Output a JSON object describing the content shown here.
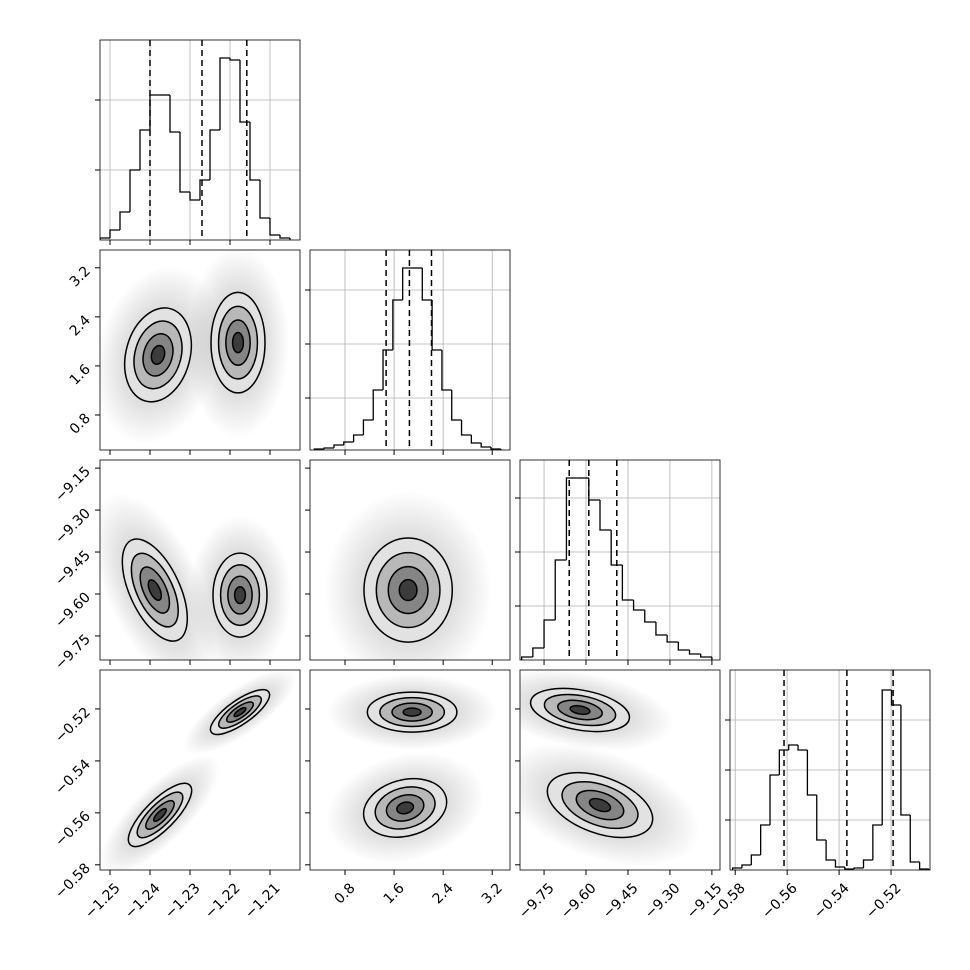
{
  "chart_data": {
    "type": "corner",
    "color": "#000000",
    "grid_color": "#b0b0b0",
    "halo_color": "#8c8c8c",
    "levels": [
      1,
      0.72,
      0.45,
      0.2
    ],
    "fills": [
      "#e2e2e2",
      "#b8b8b8",
      "#858585",
      "#3c3c3c"
    ],
    "params": [
      {
        "xlim": [
          -1.2525,
          -1.2025
        ],
        "ticks": [
          {
            "value": -1.25,
            "label": "−1.25"
          },
          {
            "value": -1.24,
            "label": "−1.24"
          },
          {
            "value": -1.23,
            "label": "−1.23"
          },
          {
            "value": -1.22,
            "label": "−1.22"
          },
          {
            "value": -1.21,
            "label": "−1.21"
          }
        ],
        "quantiles": [
          -1.24,
          -1.227,
          -1.2158
        ],
        "bins": [
          -1.2525,
          -1.25,
          -1.2475,
          -1.245,
          -1.2425,
          -1.24,
          -1.2375,
          -1.235,
          -1.2325,
          -1.23,
          -1.2275,
          -1.225,
          -1.2225,
          -1.22,
          -1.2175,
          -1.215,
          -1.2125,
          -1.21,
          -1.2075,
          -1.205
        ],
        "counts": [
          2,
          10,
          28,
          70,
          110,
          145,
          145,
          108,
          48,
          40,
          60,
          110,
          182,
          180,
          118,
          60,
          22,
          5,
          2
        ],
        "hist_ylim": [
          0,
          200
        ],
        "hist_yticks": [
          70,
          140
        ]
      },
      {
        "xlim": [
          0.229,
          3.49
        ],
        "ticks": [
          0.8,
          1.6,
          2.4,
          3.2
        ],
        "quantiles": [
          1.47,
          1.85,
          2.21
        ],
        "bins": [
          0.3,
          0.46,
          0.62,
          0.78,
          0.94,
          1.1,
          1.26,
          1.42,
          1.58,
          1.74,
          1.9,
          2.06,
          2.22,
          2.38,
          2.54,
          2.7,
          2.86,
          3.02,
          3.18,
          3.34
        ],
        "counts": [
          1,
          2,
          5,
          8,
          15,
          30,
          60,
          100,
          150,
          182,
          182,
          150,
          100,
          60,
          30,
          15,
          7,
          3,
          1
        ],
        "hist_ylim": [
          0,
          200
        ],
        "hist_yticks": [
          52,
          106,
          160
        ]
      },
      {
        "xlim": [
          -9.836,
          -9.121
        ],
        "ticks": [
          {
            "value": -9.75,
            "label": "−9.75"
          },
          {
            "value": -9.6,
            "label": "−9.60"
          },
          {
            "value": -9.45,
            "label": "−9.45"
          },
          {
            "value": -9.3,
            "label": "−9.30"
          },
          {
            "value": -9.15,
            "label": "−9.15"
          }
        ],
        "quantiles": [
          -9.66,
          -9.59,
          -9.49
        ],
        "bins": [
          -9.83,
          -9.79,
          -9.75,
          -9.71,
          -9.67,
          -9.63,
          -9.59,
          -9.55,
          -9.51,
          -9.47,
          -9.43,
          -9.39,
          -9.35,
          -9.31,
          -9.27,
          -9.23,
          -9.19,
          -9.15
        ],
        "counts": [
          3,
          12,
          40,
          100,
          182,
          182,
          160,
          130,
          95,
          60,
          50,
          38,
          25,
          18,
          10,
          6,
          3
        ],
        "hist_ylim": [
          0,
          200
        ],
        "hist_yticks": [
          54,
          108,
          162
        ]
      },
      {
        "xlim": [
          -0.582,
          -0.505
        ],
        "ticks": [
          {
            "value": -0.58,
            "label": "−0.58"
          },
          {
            "value": -0.56,
            "label": "−0.56"
          },
          {
            "value": -0.54,
            "label": "−0.54"
          },
          {
            "value": -0.52,
            "label": "−0.52"
          }
        ],
        "quantiles": [
          -0.5612,
          -0.537,
          -0.5192
        ],
        "bins": [
          -0.581,
          -0.5774,
          -0.5738,
          -0.5702,
          -0.5666,
          -0.563,
          -0.5594,
          -0.5558,
          -0.5522,
          -0.5486,
          -0.545,
          -0.5414,
          -0.5378,
          -0.5342,
          -0.5306,
          -0.527,
          -0.5234,
          -0.5198,
          -0.5162,
          -0.5126,
          -0.509,
          -0.5054
        ],
        "counts": [
          2,
          5,
          15,
          45,
          95,
          120,
          125,
          120,
          75,
          30,
          10,
          3,
          1,
          2,
          10,
          45,
          180,
          165,
          55,
          8,
          1
        ],
        "hist_ylim": [
          0,
          200
        ],
        "hist_yticks": [
          50,
          100,
          150
        ]
      }
    ],
    "panels": [
      {
        "x_param": 0,
        "y_param": 1,
        "modes": [
          {
            "x": -1.238,
            "y": 1.78,
            "rx": 0.008,
            "ry": 0.78,
            "angle": 15
          },
          {
            "x": -1.218,
            "y": 1.98,
            "rx": 0.00675,
            "ry": 0.82,
            "angle": 0
          }
        ]
      },
      {
        "x_param": 0,
        "y_param": 2,
        "modes": [
          {
            "x": -1.2388,
            "y": -9.586,
            "rx": 0.00625,
            "ry": 0.197,
            "angle": -25
          },
          {
            "x": -1.2175,
            "y": -9.604,
            "rx": 0.00675,
            "ry": 0.15,
            "angle": 0
          }
        ]
      },
      {
        "x_param": 1,
        "y_param": 2,
        "modes": [
          {
            "x": 1.829,
            "y": -9.586,
            "rx": 0.72,
            "ry": 0.186,
            "angle": 0
          }
        ]
      },
      {
        "x_param": 0,
        "y_param": 3,
        "modes": [
          {
            "x": -1.2375,
            "y": -0.5608,
            "rx": 0.00375,
            "ry": 0.0162,
            "angle": 45
          },
          {
            "x": -1.2175,
            "y": -0.5212,
            "rx": 0.003,
            "ry": 0.0135,
            "angle": 55
          }
        ]
      },
      {
        "x_param": 1,
        "y_param": 3,
        "modes": [
          {
            "x": 1.894,
            "y": -0.5212,
            "rx": 0.73,
            "ry": 0.0077,
            "angle": 0
          },
          {
            "x": 1.78,
            "y": -0.5581,
            "rx": 0.69,
            "ry": 0.0108,
            "angle": -15
          }
        ]
      },
      {
        "x_param": 2,
        "y_param": 3,
        "modes": [
          {
            "x": -9.6215,
            "y": -0.5204,
            "rx": 0.179,
            "ry": 0.0077,
            "angle": 10
          },
          {
            "x": -9.55,
            "y": -0.557,
            "rx": 0.197,
            "ry": 0.0108,
            "angle": 20
          }
        ]
      }
    ]
  }
}
